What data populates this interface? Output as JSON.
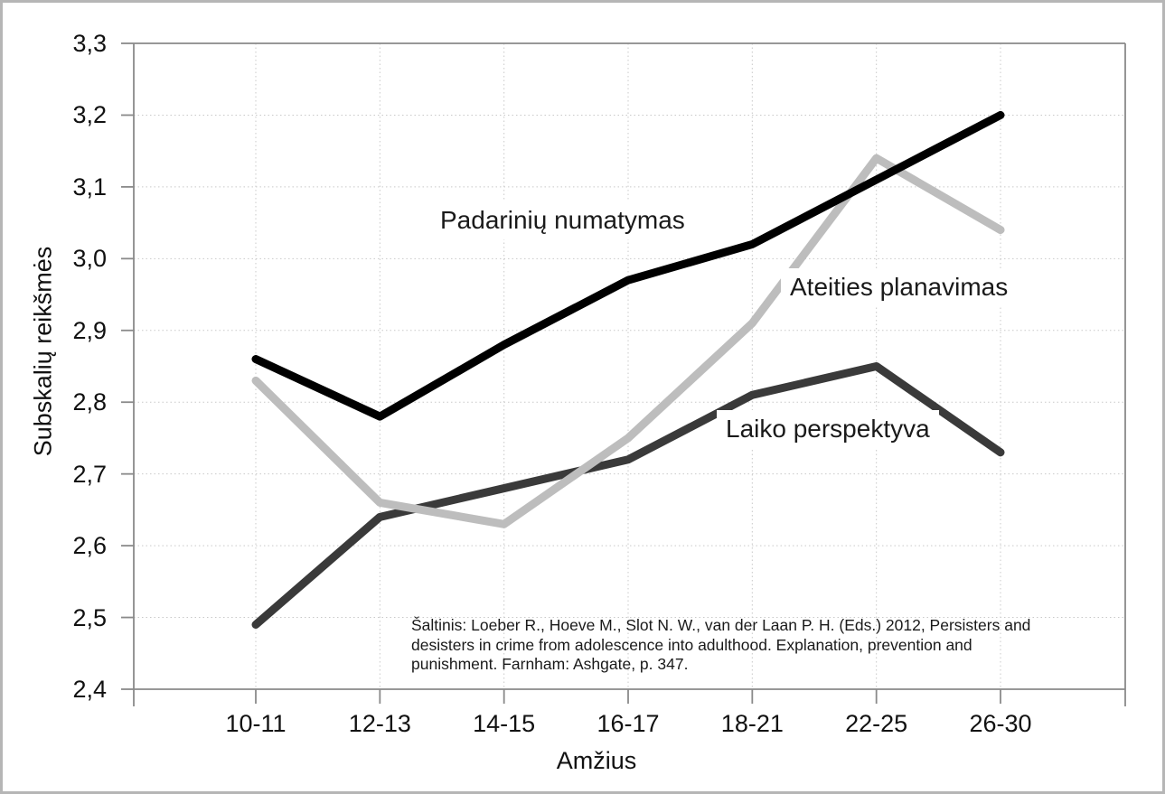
{
  "figure": {
    "background": "#ffffff",
    "outer_border_color": "#b6b6b6",
    "frame_color": "#8a8a8a",
    "tick_label_color": "#111111"
  },
  "chart_data": {
    "type": "line",
    "categories": [
      "10-11",
      "12-13",
      "14-15",
      "16-17",
      "18-21",
      "22-25",
      "26-30"
    ],
    "series": [
      {
        "name": "Padarinių numatymas",
        "color": "#000000",
        "line_width": 9,
        "values": [
          2.86,
          2.78,
          2.88,
          2.97,
          3.02,
          3.11,
          3.2
        ]
      },
      {
        "name": "Ateities planavimas",
        "color": "#bdbdbd",
        "line_width": 9,
        "values": [
          2.83,
          2.66,
          2.63,
          2.75,
          2.91,
          3.14,
          3.04
        ]
      },
      {
        "name": "Laiko perspektyva",
        "color": "#3a3a3a",
        "line_width": 9,
        "values": [
          2.49,
          2.64,
          2.68,
          2.72,
          2.81,
          2.85,
          2.73
        ]
      }
    ],
    "xlabel": "Amžius",
    "ylabel": "Subskalių reikšmės",
    "ylim": [
      2.4,
      3.3
    ],
    "ytick_step": 0.1,
    "ytick_labels": [
      "3,3",
      "3,2",
      "3,1",
      "3,0",
      "2,9",
      "2,8",
      "2,7",
      "2,6",
      "2,5",
      "2,4"
    ],
    "decimal_separator": ",",
    "grid": "dotted",
    "gridline_color": "#c9c9c9",
    "legend_position": "inline labels beside lines"
  },
  "source_note": {
    "lines": [
      "Šaltinis: Loeber R., Hoeve M., Slot N. W., van der Laan P. H. (Eds.) 2012, Persisters and",
      "desisters in crime from adolescence into adulthood. Explanation, prevention and",
      "punishment. Farnham: Ashgate, p. 347."
    ],
    "full": "Šaltinis: Loeber R., Hoeve M., Slot N. W., van der Laan P. H. (Eds.) 2012, Persisters and desisters in crime from adolescence into adulthood. Explanation, prevention and punishment. Farnham: Ashgate, p. 347."
  }
}
